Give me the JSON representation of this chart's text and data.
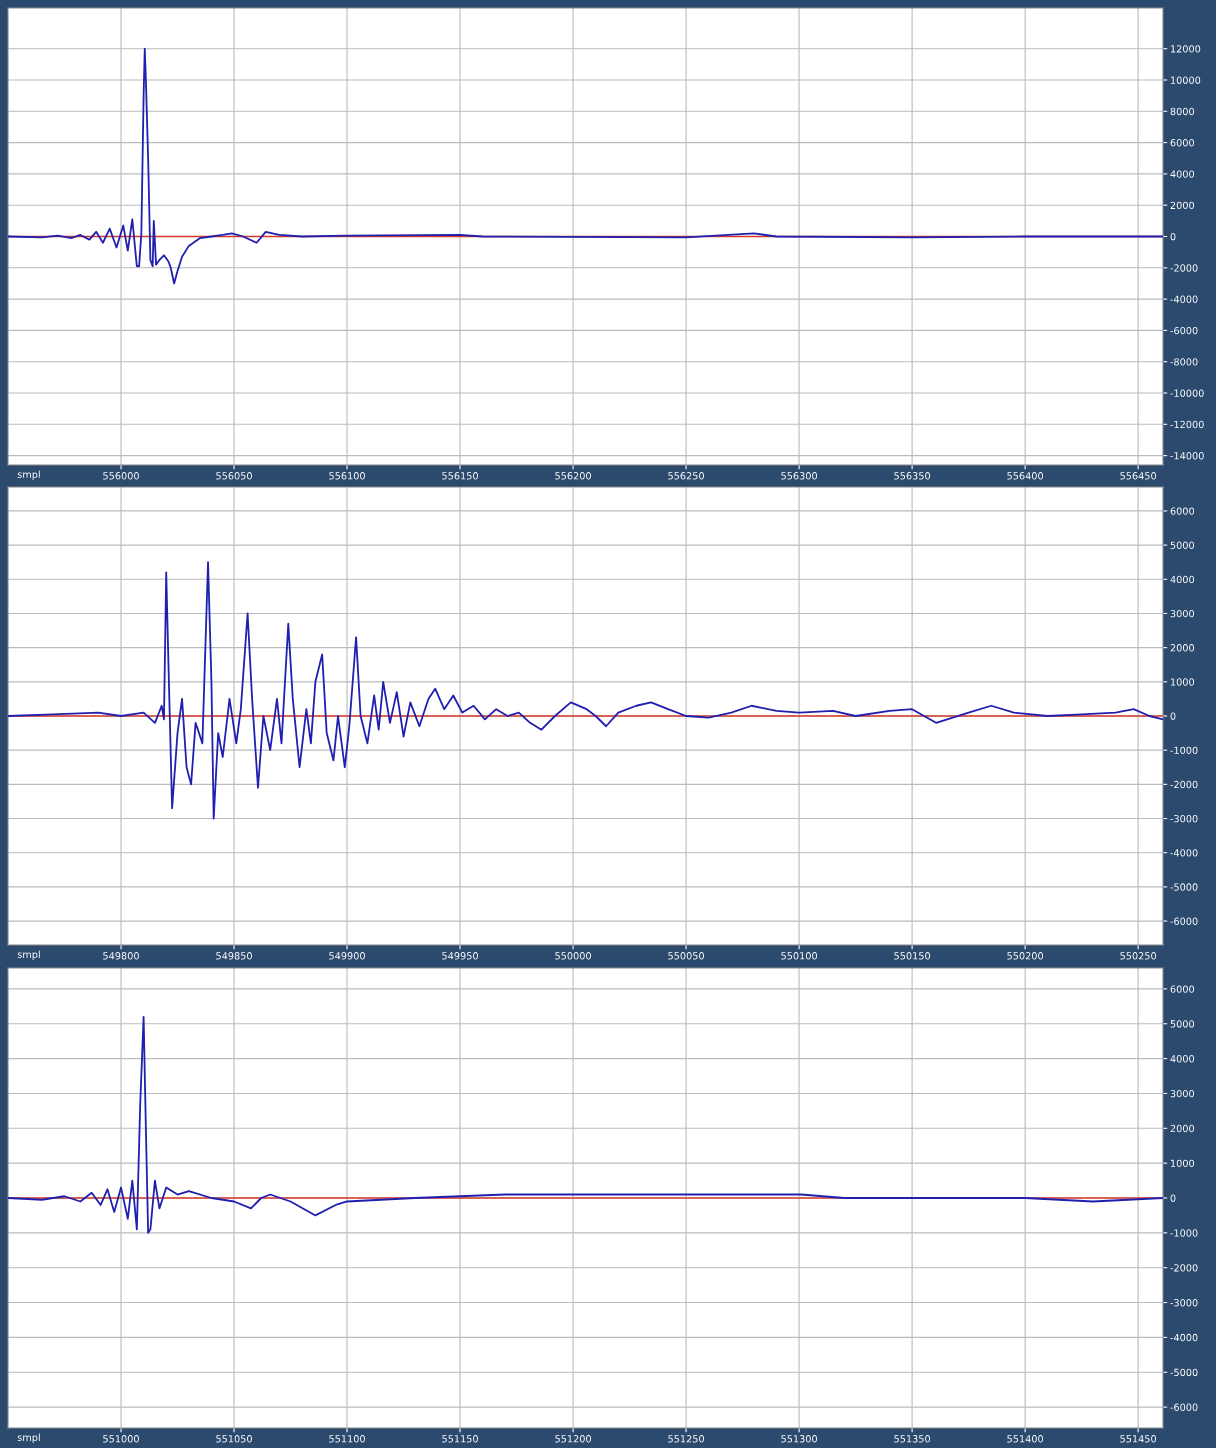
{
  "chart_data": [
    {
      "type": "line",
      "xlabel": "smpl",
      "xlim": [
        555950,
        556461
      ],
      "ylim": [
        -14600,
        14600
      ],
      "xticks": [
        556000,
        556050,
        556100,
        556150,
        556200,
        556250,
        556300,
        556350,
        556400,
        556450
      ],
      "yticks": [
        -14000,
        -12000,
        -10000,
        -8000,
        -6000,
        -4000,
        -2000,
        0,
        2000,
        4000,
        6000,
        8000,
        10000,
        12000
      ],
      "grid": true,
      "marker": "none",
      "line_style": "solid",
      "ref_lines": [
        {
          "axis": "y",
          "value": 0,
          "color": "#d83a2a"
        }
      ],
      "series": [
        {
          "color": "#2020b0",
          "x": [
            555950,
            555965,
            555972,
            555978,
            555982,
            555986,
            555989,
            555992,
            555995,
            555998,
            556001,
            556003,
            556005,
            556007,
            556008,
            556009,
            556010,
            556010.5,
            556011,
            556012,
            556013,
            556014,
            556014.5,
            556015.5,
            556017,
            556019,
            556021,
            556022,
            556023.5,
            556025,
            556027,
            556030,
            556035,
            556040,
            556045,
            556049,
            556054,
            556060,
            556064,
            556070,
            556080,
            556100,
            556150,
            556160,
            556250,
            556280,
            556290,
            556350,
            556400,
            556461
          ],
          "values": [
            0,
            -50,
            50,
            -100,
            100,
            -200,
            300,
            -400,
            500,
            -700,
            700,
            -900,
            1100,
            -1900,
            -1900,
            200,
            9000,
            12000,
            10000,
            5000,
            -1500,
            -1900,
            1000,
            -1800,
            -1500,
            -1200,
            -1600,
            -2000,
            -3000,
            -2200,
            -1300,
            -600,
            -100,
            0,
            100,
            200,
            0,
            -400,
            300,
            100,
            0,
            50,
            100,
            0,
            -50,
            200,
            0,
            -50,
            0,
            0
          ]
        }
      ]
    },
    {
      "type": "line",
      "xlabel": "smpl",
      "xlim": [
        549750,
        550261
      ],
      "ylim": [
        -6700,
        6700
      ],
      "xticks": [
        549800,
        549850,
        549900,
        549950,
        550000,
        550050,
        550100,
        550150,
        550200,
        550250
      ],
      "yticks": [
        -6000,
        -5000,
        -4000,
        -3000,
        -2000,
        -1000,
        0,
        1000,
        2000,
        3000,
        4000,
        5000,
        6000
      ],
      "grid": true,
      "marker": "none",
      "line_style": "solid",
      "ref_lines": [
        {
          "axis": "y",
          "value": 0,
          "color": "#d83a2a"
        }
      ],
      "series": [
        {
          "color": "#2020b0",
          "x": [
            549750,
            549770,
            549790,
            549800,
            549810,
            549815,
            549818,
            549819,
            549820,
            549821,
            549822.6,
            549825,
            549827,
            549829,
            549831,
            549833,
            549836,
            549838.5,
            549840,
            549841,
            549843,
            549845,
            549848,
            549851,
            549853,
            549856,
            549858,
            549860.6,
            549863,
            549866,
            549869,
            549871,
            549874,
            549876,
            549879,
            549882,
            549884,
            549886,
            549889,
            549891,
            549894,
            549896,
            549899,
            549901,
            549904,
            549906,
            549909,
            549912,
            549914,
            549916,
            549919,
            549922,
            549925,
            549928,
            549932,
            549936,
            549939,
            549943,
            549947,
            549951,
            549956,
            549961,
            549966,
            549971,
            549976,
            549981,
            549986,
            549992,
            549999,
            550006,
            550010,
            550014.6,
            550020,
            550028,
            550034.5,
            550042,
            550050,
            550060,
            550070,
            550079,
            550090,
            550100,
            550115,
            550125,
            550140,
            550150,
            550160.6,
            550175,
            550185,
            550195,
            550210,
            550225,
            550240,
            550248,
            550255,
            550261
          ],
          "values": [
            0,
            50,
            100,
            0,
            100,
            -200,
            300,
            -100,
            4200,
            1500,
            -2700,
            -500,
            500,
            -1500,
            -2000,
            -200,
            -800,
            4500,
            1000,
            -3000,
            -500,
            -1200,
            500,
            -800,
            200,
            3000,
            500,
            -2100,
            0,
            -1000,
            500,
            -800,
            2700,
            500,
            -1500,
            200,
            -800,
            1000,
            1800,
            -500,
            -1300,
            0,
            -1500,
            -300,
            2300,
            0,
            -800,
            600,
            -400,
            1000,
            -200,
            700,
            -600,
            400,
            -300,
            500,
            800,
            200,
            600,
            100,
            300,
            -100,
            200,
            0,
            100,
            -200,
            -400,
            0,
            400,
            200,
            0,
            -300,
            100,
            300,
            400,
            200,
            0,
            -50,
            100,
            300,
            150,
            100,
            150,
            0,
            150,
            200,
            -200,
            100,
            300,
            100,
            0,
            50,
            100,
            200,
            0,
            -100
          ]
        }
      ]
    },
    {
      "type": "line",
      "xlabel": "smpl",
      "xlim": [
        550950,
        551461
      ],
      "ylim": [
        -6600,
        6600
      ],
      "xticks": [
        551000,
        551050,
        551100,
        551150,
        551200,
        551250,
        551300,
        551350,
        551400,
        551450
      ],
      "yticks": [
        -6000,
        -5000,
        -4000,
        -3000,
        -2000,
        -1000,
        0,
        1000,
        2000,
        3000,
        4000,
        5000,
        6000
      ],
      "grid": true,
      "marker": "none",
      "line_style": "solid",
      "ref_lines": [
        {
          "axis": "y",
          "value": 0,
          "color": "#d83a2a"
        }
      ],
      "series": [
        {
          "color": "#2020b0",
          "x": [
            550950,
            550965,
            550975,
            550982,
            550987,
            550991,
            550994,
            550997,
            551000,
            551003,
            551005,
            551007,
            551008.5,
            551010,
            551011,
            551012,
            551013,
            551015,
            551017,
            551020,
            551025,
            551030,
            551040,
            551050,
            551057.5,
            551062,
            551066,
            551075,
            551086,
            551095,
            551100,
            551130,
            551170,
            551200,
            551250,
            551301,
            551320,
            551400,
            551430,
            551461
          ],
          "values": [
            0,
            -50,
            50,
            -100,
            150,
            -200,
            250,
            -400,
            300,
            -600,
            500,
            -900,
            2700,
            5200,
            2000,
            -1000,
            -900,
            500,
            -300,
            300,
            100,
            200,
            0,
            -100,
            -300,
            0,
            100,
            -100,
            -500,
            -200,
            -100,
            0,
            100,
            100,
            100,
            100,
            0,
            0,
            -100,
            0
          ]
        }
      ]
    }
  ]
}
